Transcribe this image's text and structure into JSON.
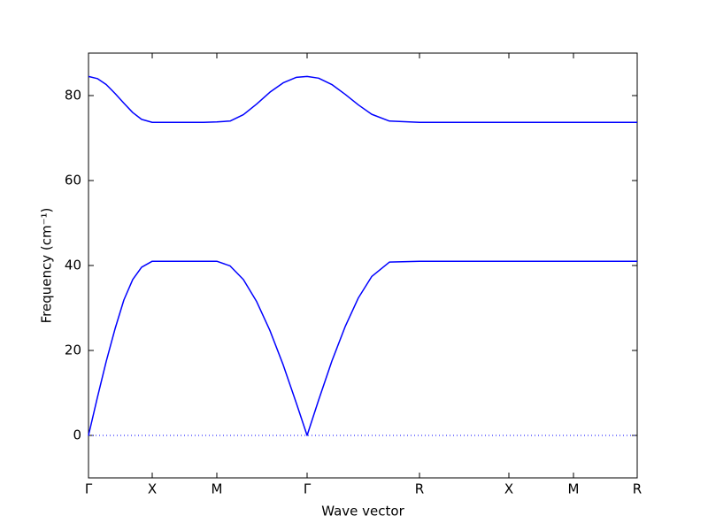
{
  "chart_data": {
    "type": "line",
    "xlabel": "Wave vector",
    "ylabel": "Frequency (cm⁻¹)",
    "x": [
      0,
      10,
      20,
      30,
      40,
      50,
      60,
      72,
      100,
      130,
      145,
      160,
      175,
      190,
      205,
      220,
      235,
      247,
      260,
      275,
      290,
      305,
      320,
      340,
      374,
      475,
      548,
      620
    ],
    "series": [
      {
        "color": "#0000ff",
        "values": [
          0,
          8.9,
          17.4,
          25.1,
          31.9,
          36.7,
          39.6,
          41,
          41,
          41,
          41,
          39.9,
          36.7,
          31.5,
          24.7,
          16.6,
          7.5,
          0,
          8.3,
          17.5,
          25.6,
          32.4,
          37.4,
          40.8,
          41,
          41,
          41,
          41
        ]
      },
      {
        "color": "#0000ff",
        "values": [
          84.5,
          84.0,
          82.6,
          80.5,
          78.2,
          76.0,
          74.4,
          73.7,
          73.7,
          73.7,
          73.8,
          74.0,
          75.5,
          78.0,
          80.8,
          83.0,
          84.3,
          84.5,
          84.1,
          82.6,
          80.3,
          77.8,
          75.6,
          74.0,
          73.7,
          73.7,
          73.7,
          73.7
        ]
      }
    ],
    "xlim": [
      0,
      620
    ],
    "xticks": [
      {
        "value": 0,
        "label": "Γ"
      },
      {
        "value": 72,
        "label": "X"
      },
      {
        "value": 145,
        "label": "M"
      },
      {
        "value": 247,
        "label": "Γ"
      },
      {
        "value": 374,
        "label": "R"
      },
      {
        "value": 475,
        "label": "X"
      },
      {
        "value": 548,
        "label": "M"
      },
      {
        "value": 620,
        "label": "R"
      }
    ],
    "ylim": [
      -10,
      90
    ],
    "yticks": [
      0,
      20,
      40,
      60,
      80
    ],
    "hline": 0,
    "hline_color": "#0000ff",
    "grid": false
  }
}
